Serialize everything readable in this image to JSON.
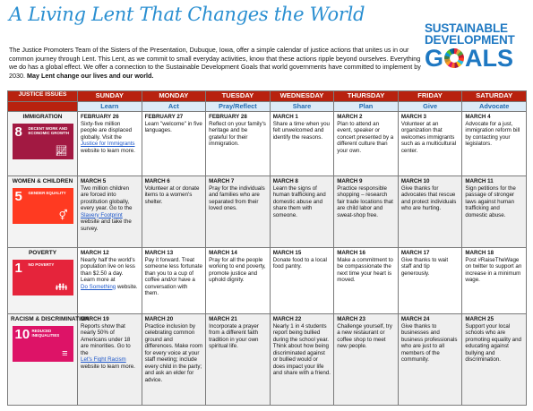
{
  "header": {
    "title": "A Living Lent That Changes the World",
    "intro": "The Justice Promoters Team of the Sisters of the Presentation, Dubuque, Iowa, offer a simple calendar of justice actions that unites us in our common journey through Lent. This Lent, as we commit to small everyday activities, know that these actions ripple beyond ourselves. Everything we do has a global effect. We offer a connection to the Sustainable Development Goals that world governments have committed to implement by 2030.",
    "intro_bold": "May Lent change our lives and our world."
  },
  "logo": {
    "line1": "SUSTAINABLE",
    "line2": "DEVELOPMENT",
    "goals_pre": "G",
    "goals_post": "ALS",
    "wheel_icon": "sdg-wheel-icon"
  },
  "columns": {
    "issues_header": "JUSTICE ISSUES",
    "days": [
      "SUNDAY",
      "MONDAY",
      "TUESDAY",
      "WEDNESDAY",
      "THURSDAY",
      "FRIDAY",
      "SATURDAY"
    ],
    "actions": [
      "Learn",
      "Act",
      "Pray/Reflect",
      "Share",
      "Plan",
      "Give",
      "Advocate"
    ]
  },
  "rows": [
    {
      "issue": "IMMIGRATION",
      "goal": {
        "num": "8",
        "text": "DECENT WORK AND ECONOMIC GROWTH",
        "color": "#a21942",
        "icon": "growth-chart-icon"
      },
      "cells": [
        {
          "date": "FEBRUARY 26",
          "text": "Sixty-five million people are displaced globally. Visit the",
          "link": "Justice for Immigrants",
          "after": " website to learn more."
        },
        {
          "date": "FEBRUARY 27",
          "text": "Learn \"welcome\" in five languages."
        },
        {
          "date": "FEBRUARY 28",
          "text": "Reflect on your family's heritage and be grateful for their immigration."
        },
        {
          "date": "MARCH 1",
          "text": "Share a time when you felt unwelcomed and identify the reasons."
        },
        {
          "date": "MARCH 2",
          "text": "Plan to attend an event, speaker or concert presented by a different culture than your own."
        },
        {
          "date": "MARCH 3",
          "text": "Volunteer at an organization that welcomes immigrants such as a multicultural center."
        },
        {
          "date": "MARCH 4",
          "text": "Advocate for a just, immigration reform bill by contacting your legislators."
        }
      ]
    },
    {
      "issue": "WOMEN & CHILDREN",
      "goal": {
        "num": "5",
        "text": "GENDER EQUALITY",
        "color": "#ff3a21",
        "icon": "gender-equality-icon"
      },
      "cells": [
        {
          "date": "MARCH 5",
          "text": "Two million children are forced into prostitution globally, every year. Go to the",
          "link": "Slavery Footprint",
          "after": " website and take the survey."
        },
        {
          "date": "MARCH 6",
          "text": "Volunteer at or donate items to a women's shelter."
        },
        {
          "date": "MARCH 7",
          "text": "Pray for the individuals and families who are separated from their loved ones."
        },
        {
          "date": "MARCH 8",
          "text": "Learn the signs of human trafficking and domestic abuse and share them with someone."
        },
        {
          "date": "MARCH 9",
          "text": "Practice responsible shopping – research fair trade locations that are child labor and sweat-shop free."
        },
        {
          "date": "MARCH 10",
          "text": "Give thanks for advocates that rescue and protect individuals who are hurting."
        },
        {
          "date": "MARCH 11",
          "text": "Sign petitions for the passage of stronger laws against human trafficking and domestic abuse."
        }
      ]
    },
    {
      "issue": "POVERTY",
      "goal": {
        "num": "1",
        "text": "NO POVERTY",
        "color": "#e5243b",
        "icon": "family-icon"
      },
      "cells": [
        {
          "date": "MARCH 12",
          "text": "Nearly half the world's population live on less than $2.50 a day. Learn more at",
          "link": "Do Something",
          "after": " website."
        },
        {
          "date": "MARCH 13",
          "text": "Pay it forward. Treat someone less fortunate than you to a cup of coffee and/or have a conversation with them."
        },
        {
          "date": "MARCH 14",
          "text": "Pray for all the people working to end poverty, promote justice and uphold dignity."
        },
        {
          "date": "MARCH 15",
          "text": "Donate food to a local food pantry."
        },
        {
          "date": "MARCH 16",
          "text": "Make a commitment to be compassionate the next time your heart is moved."
        },
        {
          "date": "MARCH 17",
          "text": "Give thanks to wait staff and tip generously."
        },
        {
          "date": "MARCH 18",
          "text": "Post #RaiseTheWage on twitter to support an increase in a minimum wage."
        }
      ]
    },
    {
      "issue": "RACISM & DISCRIMINATION",
      "goal": {
        "num": "10",
        "text": "REDUCED INEQUALITIES",
        "color": "#dd1367",
        "icon": "equality-icon"
      },
      "cells": [
        {
          "date": "MARCH 19",
          "text": "Reports show that nearly 50% of Americans under 18 are minorities. Go to the",
          "link": "Let's Fight Racism",
          "after": " website to learn more."
        },
        {
          "date": "MARCH 20",
          "text": "Practice inclusion by celebrating common ground and differences. Make room for every voice at your staff meeting; include every child in the party; and ask an elder for advice."
        },
        {
          "date": "MARCH 21",
          "text": "Incorporate a prayer from a different faith tradition in your own spiritual life."
        },
        {
          "date": "MARCH 22",
          "text": "Nearly 1 in 4 students report being bullied during the school year. Think about how being discriminated against or bullied would or does impact your life and share with a friend."
        },
        {
          "date": "MARCH 23",
          "text": "Challenge yourself, try a new restaurant or coffee shop to meet new people."
        },
        {
          "date": "MARCH 24",
          "text": "Give thanks to businesses and business professionals who are just to all members of the community."
        },
        {
          "date": "MARCH 25",
          "text": "Support your local schools who are promoting equality and educating against bullying and discrimination."
        }
      ]
    }
  ]
}
